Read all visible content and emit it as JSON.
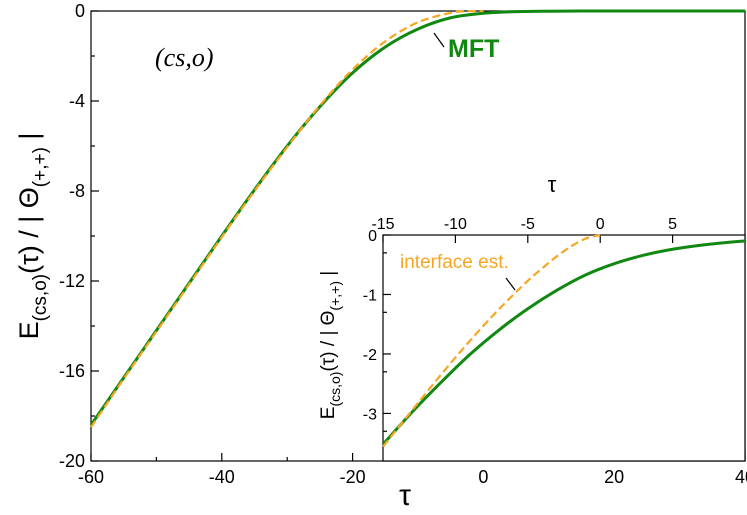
{
  "chart_data": [
    {
      "type": "line",
      "panel": "main",
      "ylabel": "E_(cs,o)(τ) / |Θ_(+,+)|",
      "xlabel": "τ",
      "annotation": "(cs,o)",
      "xlim": [
        -60,
        40
      ],
      "ylim": [
        -20,
        0
      ],
      "xticks": [
        "-60",
        "-40",
        "-20",
        "0",
        "20",
        "40"
      ],
      "yticks": [
        "0",
        "-4",
        "-8",
        "-12",
        "-16",
        "-20"
      ],
      "series": [
        {
          "name": "MFT",
          "style": "solid",
          "color": "#118811",
          "x": [
            -60,
            -55,
            -50,
            -45,
            -40,
            -35,
            -30,
            -25,
            -20,
            -15,
            -10,
            -5,
            0,
            5,
            10,
            15,
            20,
            25,
            30,
            35,
            40
          ],
          "y": [
            -18.4,
            -16.3,
            -14.2,
            -12.1,
            -10.0,
            -7.95,
            -6.0,
            -4.25,
            -2.75,
            -1.6,
            -0.8,
            -0.3,
            -0.1,
            -0.03,
            -0.01,
            0,
            0,
            0,
            0,
            0,
            0
          ]
        },
        {
          "name": "",
          "style": "dashed",
          "color": "#f5a623",
          "x": [
            -60,
            -55,
            -50,
            -45,
            -40,
            -35,
            -30,
            -25,
            -20,
            -15,
            -10,
            -5,
            -3,
            0
          ],
          "y": [
            -18.5,
            -16.35,
            -14.25,
            -12.15,
            -10.05,
            -8.0,
            -6.05,
            -4.2,
            -2.6,
            -1.35,
            -0.5,
            -0.08,
            -0.02,
            0
          ]
        }
      ]
    },
    {
      "type": "line",
      "panel": "inset",
      "ylabel": "E_(cs,o)(τ) / |Θ_(+,+)|",
      "xlabel": "τ",
      "xlim": [
        -15,
        10
      ],
      "ylim": [
        -3.8,
        0
      ],
      "xticks": [
        "-15",
        "-10",
        "-5",
        "0",
        "5"
      ],
      "yticks": [
        "0",
        "-1",
        "-2",
        "-3"
      ],
      "series": [
        {
          "name": "",
          "style": "solid",
          "color": "#118811",
          "x": [
            -15,
            -13,
            -11,
            -9,
            -7,
            -5,
            -3,
            -1,
            1,
            3,
            5,
            7,
            9,
            10
          ],
          "y": [
            -3.52,
            -2.98,
            -2.48,
            -2.01,
            -1.6,
            -1.24,
            -0.93,
            -0.67,
            -0.48,
            -0.34,
            -0.24,
            -0.17,
            -0.12,
            -0.1
          ]
        },
        {
          "name": "interface est.",
          "style": "dashed",
          "color": "#f5a623",
          "x": [
            -15,
            -13,
            -11,
            -9,
            -7,
            -5,
            -4,
            -3,
            -2,
            -1,
            0
          ],
          "y": [
            -3.56,
            -2.95,
            -2.35,
            -1.78,
            -1.25,
            -0.77,
            -0.56,
            -0.36,
            -0.19,
            -0.06,
            0
          ]
        }
      ]
    }
  ],
  "labels": {
    "main_annotation": "(cs,o)",
    "mft_label": "MFT",
    "inset_series_label": "interface est.",
    "x_axis_label": "τ",
    "y_axis_main": "E",
    "y_axis_sub_main": "(cs,o)",
    "y_axis_mid": "(τ) / | Θ",
    "y_axis_sub_end": "(+,+)",
    "y_axis_end": " |"
  }
}
